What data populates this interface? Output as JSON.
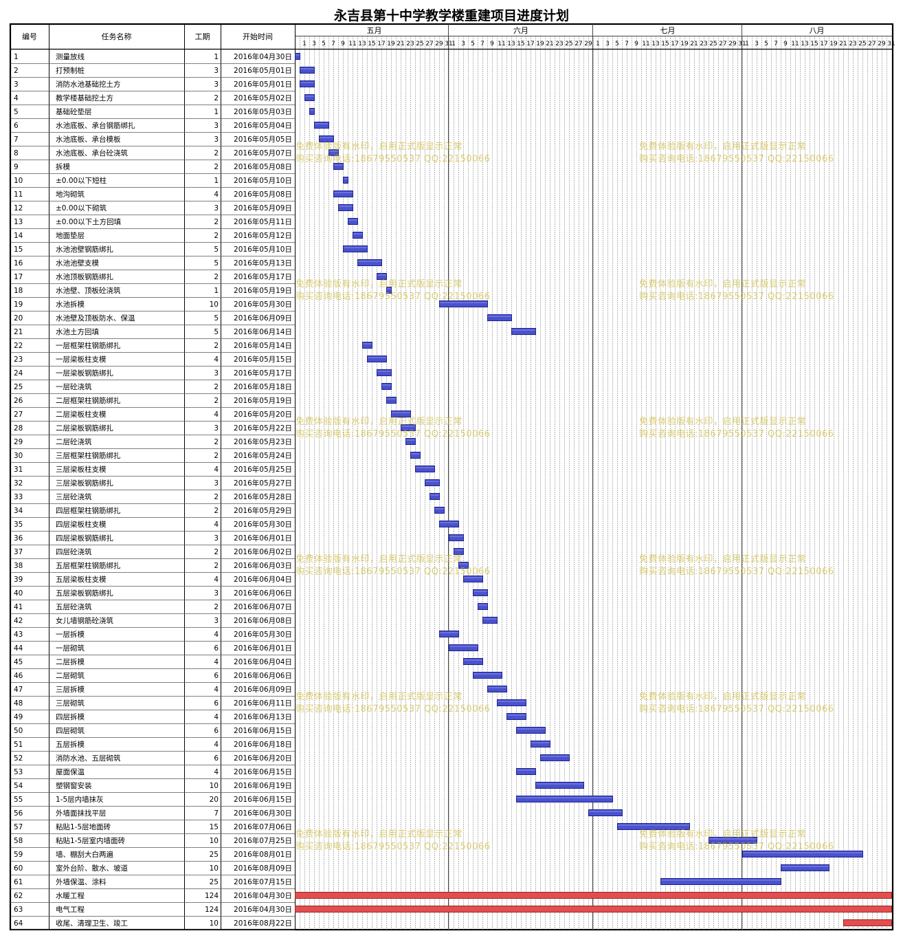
{
  "title": "永吉县第十中学教学楼重建项目进度计划",
  "columns": {
    "id": "编号",
    "name": "任务名称",
    "duration": "工期",
    "start": "开始时间"
  },
  "months": [
    "五月",
    "六月",
    "七月",
    "八月"
  ],
  "watermark": {
    "line1": "免费体验版有水印，启用正式版显示正常",
    "line2": "购买咨询电话:18679550537 QQ:22150066"
  },
  "colors": {
    "bar": "#3a3fbf",
    "bar_fill": "#4a52cc",
    "critical": "#e05050",
    "grid": "#999999",
    "watermark": "#c8b428"
  },
  "chart_data": {
    "type": "gantt",
    "title": "永吉县第十中学教学楼重建项目进度计划",
    "x_range": [
      "2016-04-30",
      "2016-08-31"
    ],
    "tasks": [
      {
        "id": "1",
        "name": "测量放线",
        "duration": 1,
        "start": "2016年04月30日"
      },
      {
        "id": "2",
        "name": "打预制桩",
        "duration": 3,
        "start": "2016年05月01日"
      },
      {
        "id": "3",
        "name": "消防水池基础挖土方",
        "duration": 3,
        "start": "2016年05月01日"
      },
      {
        "id": "4",
        "name": "教学楼基础挖土方",
        "duration": 2,
        "start": "2016年05月02日"
      },
      {
        "id": "5",
        "name": "基础砼垫层",
        "duration": 1,
        "start": "2016年05月03日"
      },
      {
        "id": "6",
        "name": "水池底板、承台钢筋绑扎",
        "duration": 3,
        "start": "2016年05月04日"
      },
      {
        "id": "7",
        "name": "水池底板、承台模板",
        "duration": 3,
        "start": "2016年05月05日"
      },
      {
        "id": "8",
        "name": "水池底板、承台砼浇筑",
        "duration": 2,
        "start": "2016年05月07日"
      },
      {
        "id": "9",
        "name": "拆模",
        "duration": 2,
        "start": "2016年05月08日"
      },
      {
        "id": "10",
        "name": "±0.00以下短柱",
        "duration": 1,
        "start": "2016年05月10日"
      },
      {
        "id": "11",
        "name": "地沟砌筑",
        "duration": 4,
        "start": "2016年05月08日"
      },
      {
        "id": "12",
        "name": "±0.00以下砌筑",
        "duration": 3,
        "start": "2016年05月09日"
      },
      {
        "id": "13",
        "name": "±0.00以下土方回填",
        "duration": 2,
        "start": "2016年05月11日"
      },
      {
        "id": "14",
        "name": "地面垫层",
        "duration": 2,
        "start": "2016年05月12日"
      },
      {
        "id": "15",
        "name": "水池池壁钢筋绑扎",
        "duration": 5,
        "start": "2016年05月10日"
      },
      {
        "id": "16",
        "name": "水池池壁支模",
        "duration": 5,
        "start": "2016年05月13日"
      },
      {
        "id": "17",
        "name": "水池顶板钢筋绑扎",
        "duration": 2,
        "start": "2016年05月17日"
      },
      {
        "id": "18",
        "name": "水池壁、顶板砼浇筑",
        "duration": 1,
        "start": "2016年05月19日"
      },
      {
        "id": "19",
        "name": "水池拆模",
        "duration": 10,
        "start": "2016年05月30日"
      },
      {
        "id": "20",
        "name": "水池壁及顶板防水、保温",
        "duration": 5,
        "start": "2016年06月09日"
      },
      {
        "id": "21",
        "name": "水池土方回填",
        "duration": 5,
        "start": "2016年06月14日"
      },
      {
        "id": "22",
        "name": "一层框架柱钢筋绑扎",
        "duration": 2,
        "start": "2016年05月14日"
      },
      {
        "id": "23",
        "name": "一层梁板柱支模",
        "duration": 4,
        "start": "2016年05月15日"
      },
      {
        "id": "24",
        "name": "一层梁板钢筋绑扎",
        "duration": 3,
        "start": "2016年05月17日"
      },
      {
        "id": "25",
        "name": "一层砼浇筑",
        "duration": 2,
        "start": "2016年05月18日"
      },
      {
        "id": "26",
        "name": "二层框架柱钢筋绑扎",
        "duration": 2,
        "start": "2016年05月19日"
      },
      {
        "id": "27",
        "name": "二层梁板柱支模",
        "duration": 4,
        "start": "2016年05月20日"
      },
      {
        "id": "28",
        "name": "二层梁板钢筋绑扎",
        "duration": 3,
        "start": "2016年05月22日"
      },
      {
        "id": "29",
        "name": "二层砼浇筑",
        "duration": 2,
        "start": "2016年05月23日"
      },
      {
        "id": "30",
        "name": "三层框架柱钢筋绑扎",
        "duration": 2,
        "start": "2016年05月24日"
      },
      {
        "id": "31",
        "name": "三层梁板柱支模",
        "duration": 4,
        "start": "2016年05月25日"
      },
      {
        "id": "32",
        "name": "三层梁板钢筋绑扎",
        "duration": 3,
        "start": "2016年05月27日"
      },
      {
        "id": "33",
        "name": "三层砼浇筑",
        "duration": 2,
        "start": "2016年05月28日"
      },
      {
        "id": "34",
        "name": "四层框架柱钢筋绑扎",
        "duration": 2,
        "start": "2016年05月29日"
      },
      {
        "id": "35",
        "name": "四层梁板柱支模",
        "duration": 4,
        "start": "2016年05月30日"
      },
      {
        "id": "36",
        "name": "四层梁板钢筋绑扎",
        "duration": 3,
        "start": "2016年06月01日"
      },
      {
        "id": "37",
        "name": "四层砼浇筑",
        "duration": 2,
        "start": "2016年06月02日"
      },
      {
        "id": "38",
        "name": "五层框架柱钢筋绑扎",
        "duration": 2,
        "start": "2016年06月03日"
      },
      {
        "id": "39",
        "name": "五层梁板柱支模",
        "duration": 4,
        "start": "2016年06月04日"
      },
      {
        "id": "40",
        "name": "五层梁板钢筋绑扎",
        "duration": 3,
        "start": "2016年06月06日"
      },
      {
        "id": "41",
        "name": "五层砼浇筑",
        "duration": 2,
        "start": "2016年06月07日"
      },
      {
        "id": "42",
        "name": "女儿墙钢筋砼浇筑",
        "duration": 3,
        "start": "2016年06月08日"
      },
      {
        "id": "43",
        "name": "一层拆模",
        "duration": 4,
        "start": "2016年05月30日"
      },
      {
        "id": "44",
        "name": "一层砌筑",
        "duration": 6,
        "start": "2016年06月01日"
      },
      {
        "id": "45",
        "name": "二层拆模",
        "duration": 4,
        "start": "2016年06月04日"
      },
      {
        "id": "46",
        "name": "二层砌筑",
        "duration": 6,
        "start": "2016年06月06日"
      },
      {
        "id": "47",
        "name": "三层拆模",
        "duration": 4,
        "start": "2016年06月09日"
      },
      {
        "id": "48",
        "name": "三层砌筑",
        "duration": 6,
        "start": "2016年06月11日"
      },
      {
        "id": "49",
        "name": "四层拆模",
        "duration": 4,
        "start": "2016年06月13日"
      },
      {
        "id": "50",
        "name": "四层砌筑",
        "duration": 6,
        "start": "2016年06月15日"
      },
      {
        "id": "51",
        "name": "五层拆模",
        "duration": 4,
        "start": "2016年06月18日"
      },
      {
        "id": "52",
        "name": "消防水池、五层砌筑",
        "duration": 6,
        "start": "2016年06月20日"
      },
      {
        "id": "53",
        "name": "屋面保温",
        "duration": 4,
        "start": "2016年06月15日"
      },
      {
        "id": "54",
        "name": "塑钢窗安装",
        "duration": 10,
        "start": "2016年06月19日"
      },
      {
        "id": "55",
        "name": "1-5层内墙抹灰",
        "duration": 20,
        "start": "2016年06月15日"
      },
      {
        "id": "56",
        "name": "外墙面抹找平层",
        "duration": 7,
        "start": "2016年06月30日"
      },
      {
        "id": "57",
        "name": "粘贴1-5层地面砖",
        "duration": 15,
        "start": "2016年07月06日"
      },
      {
        "id": "58",
        "name": "粘贴1-5层室内墙面砖",
        "duration": 10,
        "start": "2016年07月25日"
      },
      {
        "id": "59",
        "name": "墙、棚刮大白两遍",
        "duration": 25,
        "start": "2016年08月01日"
      },
      {
        "id": "60",
        "name": "室外台阶、散水、坡道",
        "duration": 10,
        "start": "2016年08月09日"
      },
      {
        "id": "61",
        "name": "外墙保温、涂料",
        "duration": 25,
        "start": "2016年07月15日"
      },
      {
        "id": "62",
        "name": "水暖工程",
        "duration": 124,
        "start": "2016年04月30日",
        "critical": true
      },
      {
        "id": "63",
        "name": "电气工程",
        "duration": 124,
        "start": "2016年04月30日",
        "critical": true
      },
      {
        "id": "64",
        "name": "收尾、清理卫生、竣工",
        "duration": 10,
        "start": "2016年08月22日",
        "critical": true
      }
    ]
  }
}
